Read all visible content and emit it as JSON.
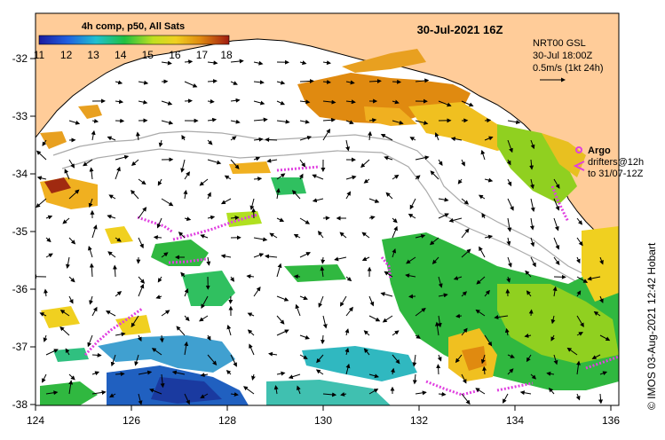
{
  "map": {
    "title": "30-Jul-2021 16Z",
    "colorbar": {
      "title": "4h comp, p50, All Sats",
      "ticks": [
        "11",
        "12",
        "13",
        "14",
        "15",
        "16",
        "17",
        "18"
      ]
    },
    "product_note": {
      "line1": "NRT00 GSL",
      "line2": "30-Jul 18:00Z",
      "line3": "0.5m/s (1kt 24h)"
    },
    "legend": {
      "argo": "Argo",
      "drifters_line1": "drifters@12h",
      "drifters_line2": "to 31/07-12Z"
    },
    "credit": "© IMOS 03-Aug-2021 12:42 Hobart",
    "x_ticks": [
      "124",
      "126",
      "128",
      "130",
      "132",
      "134",
      "136"
    ],
    "y_ticks": [
      "-32",
      "-33",
      "-34",
      "-35",
      "-36",
      "-37",
      "-38"
    ],
    "colors": {
      "land": "#FFCC99",
      "ocean": "#FFFFFF",
      "argo": "#E040E0",
      "cool": "#2060C0",
      "warm": "#E08A10"
    }
  }
}
